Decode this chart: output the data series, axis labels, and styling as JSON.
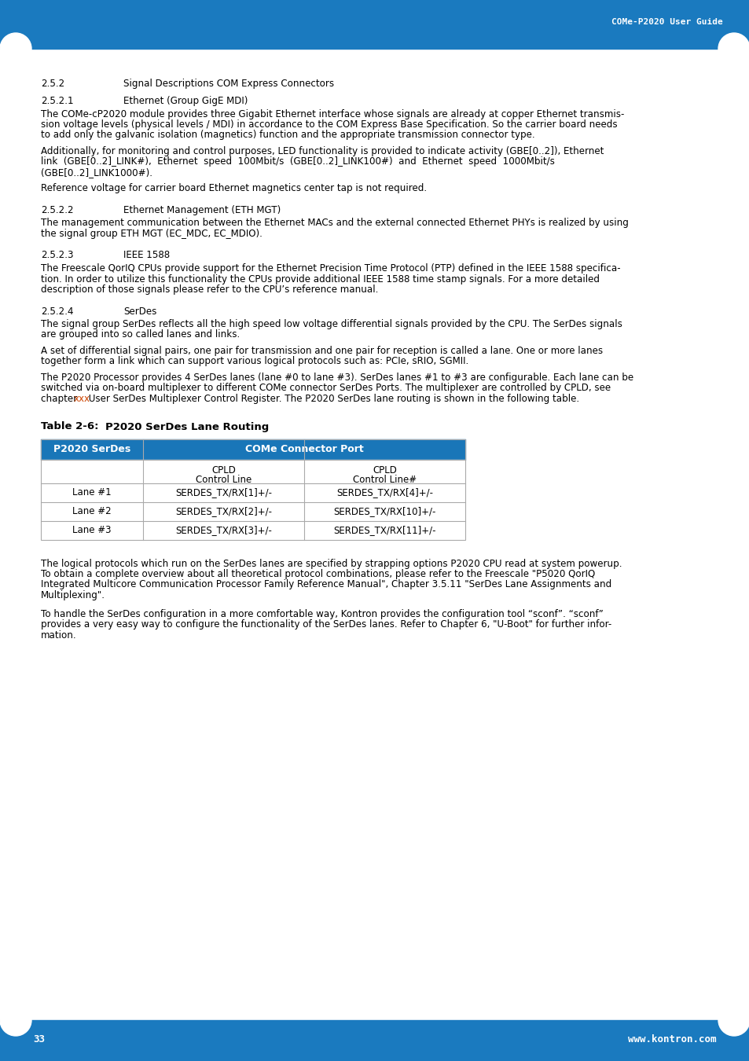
{
  "header_text": "COMe-P2020 User Guide",
  "footer_page": "33",
  "footer_url": "www.kontron.com",
  "header_bg": "#1a7abf",
  "footer_bg": "#1a7abf",
  "section_252": "2.5.2",
  "section_252_title": "Signal Descriptions COM Express Connectors",
  "section_2521": "2.5.2.1",
  "section_2521_title": "Ethernet (Group GigE MDI)",
  "para1": "The COMe-cP2020 module provides three Gigabit Ethernet interface whose signals are already at copper Ethernet transmission voltage levels (physical levels / MDI) in accordance to the COM Express Base Specification. So the carrier board needs to add only the galvanic isolation (magnetics) function and the appropriate transmission connector type.",
  "para2a": "Additionally, for monitoring and control purposes, LED functionality is provided to indicate activity (GBE[0..2]), Ethernet",
  "para2b": "link  (GBE[0..2]_LINK#),  Ethernet  speed  100Mbit/s  (GBE[0..2]_LINK100#)  and  Ethernet  speed  1000Mbit/s",
  "para2c": "(GBE[0..2]_LINK1000#).",
  "para3": "Reference voltage for carrier board Ethernet magnetics center tap is not required.",
  "section_2522": "2.5.2.2",
  "section_2522_title": "Ethernet Management (ETH MGT)",
  "para4a": "The management communication between the Ethernet MACs and the external connected Ethernet PHYs is realized by using",
  "para4b": "the signal group ETH MGT (EC_MDC, EC_MDIO).",
  "section_2523": "2.5.2.3",
  "section_2523_title": "IEEE 1588",
  "para5a": "The Freescale QorIQ CPUs provide support for the Ethernet Precision Time Protocol (PTP) defined in the IEEE 1588 specifica-",
  "para5b": "tion. In order to utilize this functionality the CPUs provide additional IEEE 1588 time stamp signals. For a more detailed",
  "para5c": "description of those signals please refer to the CPU’s reference manual.",
  "section_2524": "2.5.2.4",
  "section_2524_title": "SerDes",
  "para6a": "The signal group SerDes reflects all the high speed low voltage differential signals provided by the CPU. The SerDes signals",
  "para6b": "are grouped into so called lanes and links.",
  "para7a": "A set of differential signal pairs, one pair for transmission and one pair for reception is called a lane. One or more lanes",
  "para7b": "together form a link which can support various logical protocols such as: PCIe, sRIO, SGMII.",
  "para8a": "The P2020 Processor provides 4 SerDes lanes (lane #0 to lane #3). SerDes lanes #1 to #3 are configurable. Each lane can be",
  "para8b": "switched via on-board multiplexer to different COMe connector SerDes Ports. The multiplexer are controlled by CPLD, see",
  "para8c_before": "chapter ",
  "para8c_xxx": "xxx",
  "para8c_after": " User SerDes Multiplexer Control Register. The P2020 SerDes lane routing is shown in the following table.",
  "table_label": "Table 2-6:",
  "table_title": "P2020 SerDes Lane Routing",
  "table_header1": "P2020 SerDes",
  "table_header2": "COMe Connector Port",
  "table_subheader_cpld1": "CPLD",
  "table_subheader_ctrl1": "Control Line",
  "table_subheader_cpld2": "CPLD",
  "table_subheader_ctrl2": "Control Line#",
  "table_rows": [
    [
      "Lane #1",
      "SERDES_TX/RX[1]+/-",
      "SERDES_TX/RX[4]+/-"
    ],
    [
      "Lane #2",
      "SERDES_TX/RX[2]+/-",
      "SERDES_TX/RX[10]+/-"
    ],
    [
      "Lane #3",
      "SERDES_TX/RX[3]+/-",
      "SERDES_TX/RX[11]+/-"
    ]
  ],
  "table_header_bg": "#1976b8",
  "table_header_fg": "#ffffff",
  "table_border_color": "#aaaaaa",
  "para9a": "The logical protocols which run on the SerDes lanes are specified by strapping options P2020 CPU read at system powerup.",
  "para9b": "To obtain a complete overview about all theoretical protocol combinations, please refer to the Freescale \"P5020 QorIQ",
  "para9c": "Integrated Multicore Communication Processor Family Reference Manual\", Chapter 3.5.11 \"SerDes Lane Assignments and",
  "para9d": "Multiplexing\".",
  "para10a": "To handle the SerDes configuration in a more comfortable way, Kontron provides the configuration tool “sconf”. “sconf”",
  "para10b": "provides a very easy way to configure the functionality of the SerDes lanes. Refer to Chapter 6, \"U-Boot\" for further infor-",
  "para10c": "mation.",
  "xxx_color": "#cc4400",
  "text_color": "#000000",
  "bg_color": "#ffffff"
}
